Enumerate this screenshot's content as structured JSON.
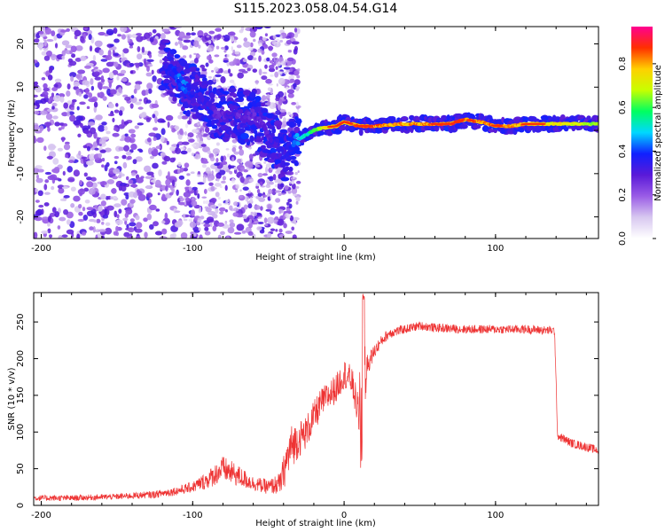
{
  "title": "S115.2023.058.04.54.G14",
  "chart_data": [
    {
      "type": "heatmap",
      "xlabel": "Height of straight line (km)",
      "ylabel": "Frequency (Hz)",
      "xlim": [
        -205,
        168
      ],
      "ylim": [
        -25,
        24
      ],
      "xticks": [
        -200,
        -100,
        0,
        100
      ],
      "yticks": [
        -20,
        -10,
        0,
        10,
        20
      ],
      "colorbar": {
        "label": "Normalized spectral amplitude",
        "range": [
          0.0,
          0.97
        ],
        "ticks": [
          0.0,
          0.2,
          0.4,
          0.6,
          0.8
        ],
        "colors": [
          "#ffffff",
          "#d8c8f0",
          "#9a5ce6",
          "#5a1ad8",
          "#1020ff",
          "#00d8ff",
          "#00ff60",
          "#c8ff00",
          "#ffd000",
          "#ff3000",
          "#ff0090"
        ]
      },
      "ridge": [
        {
          "x": -115,
          "f": 15,
          "a": 0.4
        },
        {
          "x": -110,
          "f": 12,
          "a": 0.45
        },
        {
          "x": -105,
          "f": 10,
          "a": 0.45
        },
        {
          "x": -100,
          "f": 9,
          "a": 0.4
        },
        {
          "x": -95,
          "f": 8,
          "a": 0.35
        },
        {
          "x": -90,
          "f": 6,
          "a": 0.35
        },
        {
          "x": -85,
          "f": 4,
          "a": 0.3
        },
        {
          "x": -80,
          "f": 3,
          "a": 0.3
        },
        {
          "x": -75,
          "f": 5,
          "a": 0.35
        },
        {
          "x": -70,
          "f": 4,
          "a": 0.3
        },
        {
          "x": -65,
          "f": 3,
          "a": 0.3
        },
        {
          "x": -60,
          "f": 4,
          "a": 0.3
        },
        {
          "x": -55,
          "f": 1,
          "a": 0.3
        },
        {
          "x": -50,
          "f": -1,
          "a": 0.3
        },
        {
          "x": -45,
          "f": -3,
          "a": 0.35
        },
        {
          "x": -40,
          "f": -6,
          "a": 0.35
        },
        {
          "x": -35,
          "f": -3,
          "a": 0.4
        },
        {
          "x": -30,
          "f": -2,
          "a": 0.5
        },
        {
          "x": -25,
          "f": -1,
          "a": 0.55
        },
        {
          "x": -20,
          "f": 0,
          "a": 0.65
        },
        {
          "x": -15,
          "f": 0.5,
          "a": 0.75
        },
        {
          "x": -10,
          "f": 0.8,
          "a": 0.8
        },
        {
          "x": -5,
          "f": 1,
          "a": 0.85
        },
        {
          "x": 0,
          "f": 2,
          "a": 0.8
        },
        {
          "x": 5,
          "f": 1.5,
          "a": 0.85
        },
        {
          "x": 10,
          "f": 1,
          "a": 0.9
        },
        {
          "x": 20,
          "f": 1,
          "a": 0.9
        },
        {
          "x": 40,
          "f": 1.5,
          "a": 0.85
        },
        {
          "x": 60,
          "f": 1.5,
          "a": 0.9
        },
        {
          "x": 70,
          "f": 1.5,
          "a": 0.9
        },
        {
          "x": 80,
          "f": 2.5,
          "a": 0.9
        },
        {
          "x": 90,
          "f": 2,
          "a": 0.85
        },
        {
          "x": 100,
          "f": 1,
          "a": 0.9
        },
        {
          "x": 110,
          "f": 1,
          "a": 0.85
        },
        {
          "x": 120,
          "f": 1.5,
          "a": 0.85
        },
        {
          "x": 140,
          "f": 1.5,
          "a": 0.8
        },
        {
          "x": 160,
          "f": 1.5,
          "a": 0.75
        },
        {
          "x": 168,
          "f": 1.5,
          "a": 0.7
        }
      ]
    },
    {
      "type": "line",
      "xlabel": "Height of straight line (km)",
      "ylabel": "SNR (10 * v/v)",
      "xlim": [
        -205,
        168
      ],
      "ylim": [
        0,
        290
      ],
      "xticks": [
        -200,
        -100,
        0,
        100
      ],
      "yticks": [
        0,
        50,
        100,
        150,
        200,
        250
      ],
      "series": [
        {
          "name": "SNR",
          "color": "#ee3333",
          "x": [
            -205,
            -180,
            -150,
            -125,
            -110,
            -100,
            -90,
            -80,
            -70,
            -60,
            -50,
            -42,
            -38,
            -35,
            -30,
            -25,
            -20,
            -15,
            -10,
            -5,
            0,
            5,
            10,
            12,
            15,
            20,
            25,
            30,
            40,
            50,
            60,
            80,
            100,
            120,
            139,
            141,
            150,
            168
          ],
          "values": [
            10,
            10,
            12,
            15,
            20,
            25,
            35,
            50,
            40,
            30,
            25,
            30,
            60,
            80,
            90,
            100,
            120,
            140,
            150,
            160,
            180,
            170,
            120,
            60,
            190,
            210,
            225,
            235,
            240,
            245,
            242,
            240,
            240,
            240,
            238,
            95,
            85,
            75
          ],
          "noise": [
            8,
            8,
            8,
            10,
            12,
            15,
            25,
            35,
            30,
            20,
            20,
            30,
            60,
            60,
            50,
            45,
            45,
            40,
            40,
            40,
            40,
            40,
            50,
            40,
            30,
            20,
            15,
            15,
            12,
            12,
            12,
            12,
            12,
            12,
            12,
            12,
            12,
            12
          ]
        }
      ]
    }
  ]
}
